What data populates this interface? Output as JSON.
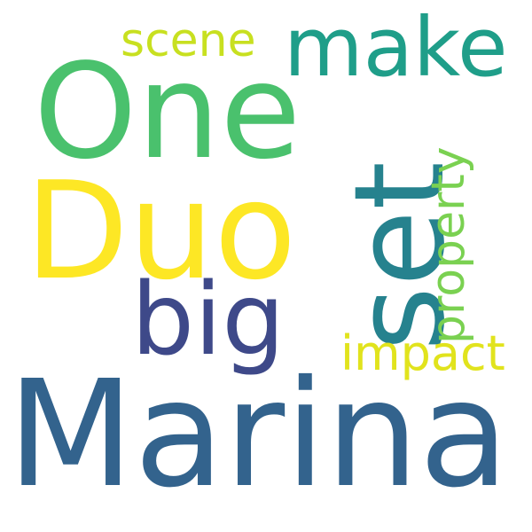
{
  "words": {
    "marina": {
      "text": "Marina",
      "color": "#33638d"
    },
    "duo": {
      "text": "Duo",
      "color": "#fde725"
    },
    "one": {
      "text": "One",
      "color": "#4ac16d"
    },
    "set": {
      "text": "set",
      "color": "#26828e"
    },
    "big": {
      "text": "big",
      "color": "#3e4989"
    },
    "make": {
      "text": "make",
      "color": "#1f9e89"
    },
    "scene": {
      "text": "scene",
      "color": "#c8e020"
    },
    "impact": {
      "text": "impact",
      "color": "#e1e31d"
    },
    "property": {
      "text": "property",
      "color": "#7ad151"
    }
  },
  "background_color": "#ffffff"
}
